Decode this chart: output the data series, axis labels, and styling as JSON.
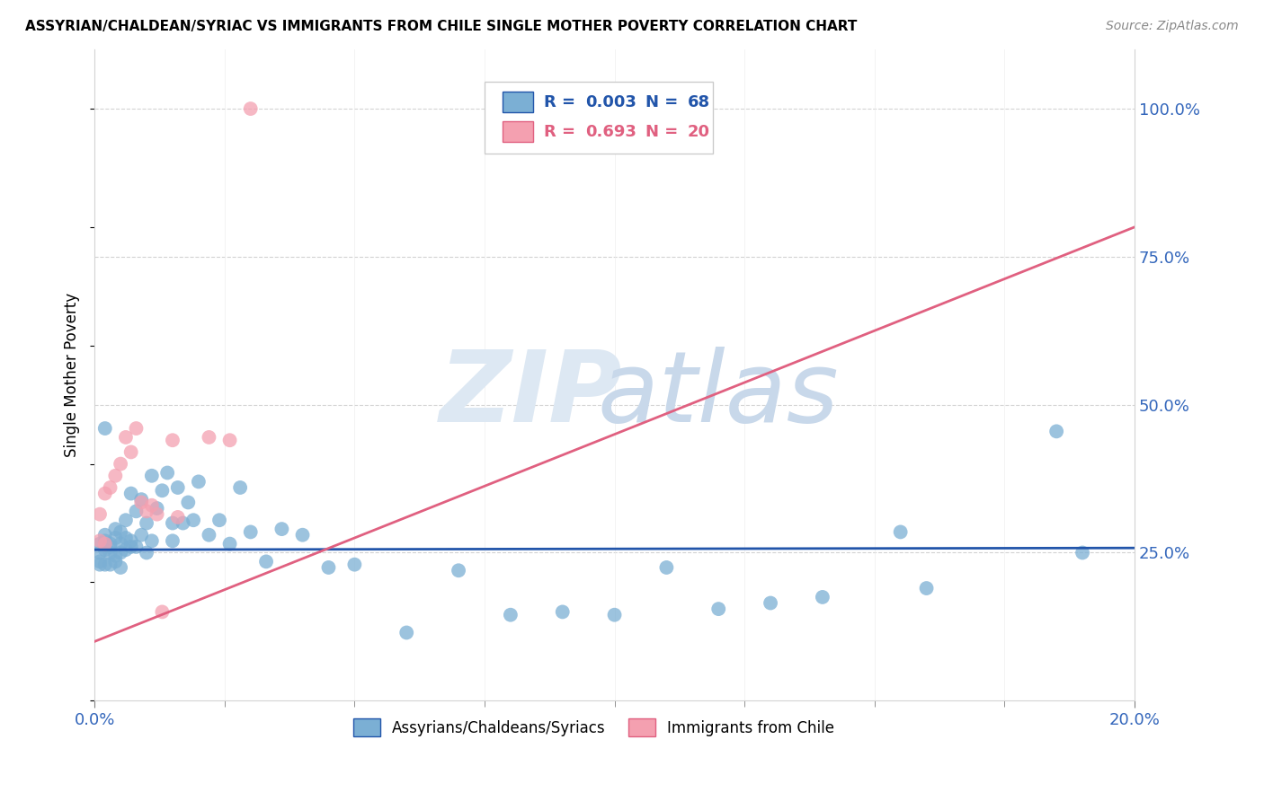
{
  "title": "ASSYRIAN/CHALDEAN/SYRIAC VS IMMIGRANTS FROM CHILE SINGLE MOTHER POVERTY CORRELATION CHART",
  "source": "Source: ZipAtlas.com",
  "ylabel": "Single Mother Poverty",
  "legend1_label": "Assyrians/Chaldeans/Syriacs",
  "legend2_label": "Immigrants from Chile",
  "r1": "0.003",
  "n1": "68",
  "r2": "0.693",
  "n2": "20",
  "color_blue": "#7BAFD4",
  "color_pink": "#F4A0B0",
  "color_blue_dark": "#2255AA",
  "color_pink_dark": "#E06080",
  "xmin": 0.0,
  "xmax": 0.2,
  "ymin": 0.0,
  "ymax": 1.1,
  "blue_x": [
    0.001,
    0.001,
    0.001,
    0.001,
    0.002,
    0.002,
    0.002,
    0.002,
    0.002,
    0.003,
    0.003,
    0.003,
    0.003,
    0.004,
    0.004,
    0.004,
    0.004,
    0.005,
    0.005,
    0.005,
    0.005,
    0.006,
    0.006,
    0.006,
    0.007,
    0.007,
    0.007,
    0.008,
    0.008,
    0.009,
    0.009,
    0.01,
    0.01,
    0.011,
    0.011,
    0.012,
    0.013,
    0.014,
    0.015,
    0.015,
    0.016,
    0.017,
    0.018,
    0.019,
    0.02,
    0.022,
    0.024,
    0.026,
    0.028,
    0.03,
    0.033,
    0.036,
    0.04,
    0.045,
    0.05,
    0.06,
    0.07,
    0.08,
    0.09,
    0.1,
    0.11,
    0.12,
    0.13,
    0.14,
    0.155,
    0.16,
    0.185,
    0.19
  ],
  "blue_y": [
    0.265,
    0.25,
    0.235,
    0.23,
    0.27,
    0.28,
    0.255,
    0.23,
    0.46,
    0.265,
    0.25,
    0.26,
    0.23,
    0.29,
    0.275,
    0.245,
    0.235,
    0.285,
    0.265,
    0.25,
    0.225,
    0.305,
    0.275,
    0.255,
    0.35,
    0.27,
    0.26,
    0.32,
    0.26,
    0.34,
    0.28,
    0.3,
    0.25,
    0.38,
    0.27,
    0.325,
    0.355,
    0.385,
    0.3,
    0.27,
    0.36,
    0.3,
    0.335,
    0.305,
    0.37,
    0.28,
    0.305,
    0.265,
    0.36,
    0.285,
    0.235,
    0.29,
    0.28,
    0.225,
    0.23,
    0.115,
    0.22,
    0.145,
    0.15,
    0.145,
    0.225,
    0.155,
    0.165,
    0.175,
    0.285,
    0.19,
    0.455,
    0.25
  ],
  "pink_x": [
    0.001,
    0.001,
    0.002,
    0.002,
    0.003,
    0.004,
    0.005,
    0.006,
    0.007,
    0.008,
    0.009,
    0.01,
    0.011,
    0.012,
    0.013,
    0.015,
    0.016,
    0.022,
    0.026,
    0.03
  ],
  "pink_y": [
    0.27,
    0.315,
    0.265,
    0.35,
    0.36,
    0.38,
    0.4,
    0.445,
    0.42,
    0.46,
    0.335,
    0.32,
    0.33,
    0.315,
    0.15,
    0.44,
    0.31,
    0.445,
    0.44,
    1.0
  ],
  "blue_line_x": [
    0.0,
    0.2
  ],
  "blue_line_y": [
    0.255,
    0.258
  ],
  "pink_line_x": [
    0.0,
    0.2
  ],
  "pink_line_y": [
    0.1,
    0.8
  ]
}
